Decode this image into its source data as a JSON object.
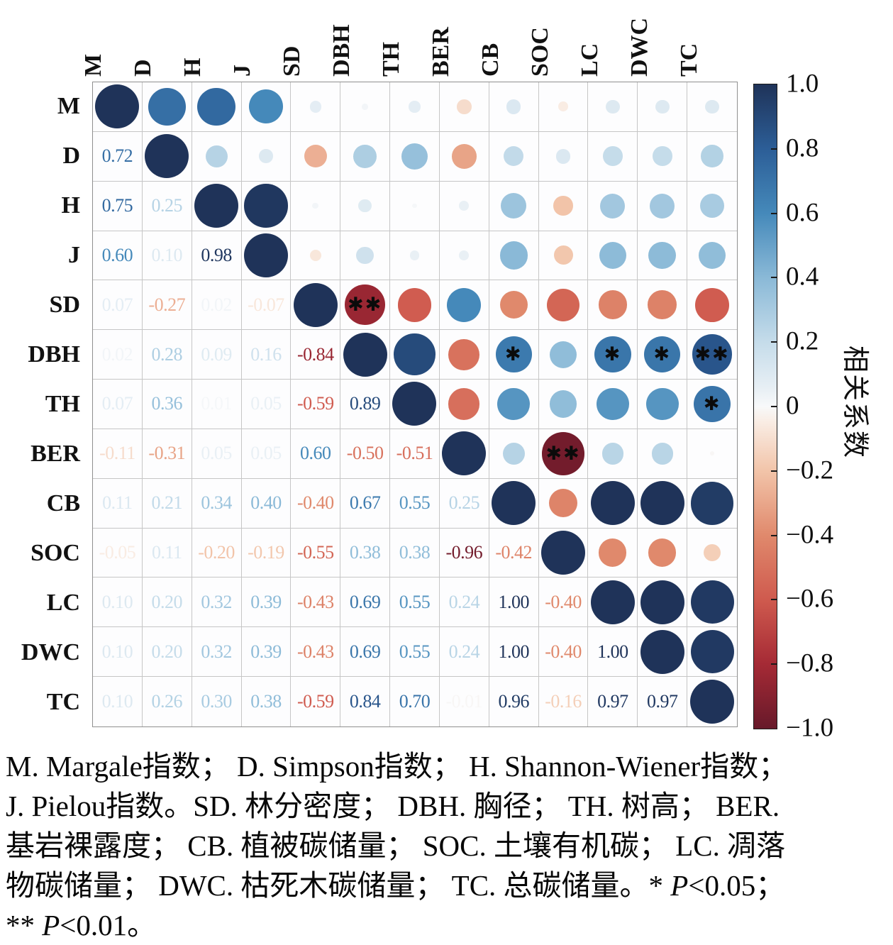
{
  "page": {
    "background": "#ffffff"
  },
  "chart_data": {
    "type": "heatmap",
    "style": "correlation-circle-matrix",
    "title": "",
    "variables": [
      "M",
      "D",
      "H",
      "J",
      "SD",
      "DBH",
      "TH",
      "BER",
      "CB",
      "SOC",
      "LC",
      "DWC",
      "TC"
    ],
    "matrix": [
      [
        1.0,
        0.72,
        0.75,
        0.6,
        0.07,
        0.02,
        0.07,
        -0.11,
        0.11,
        -0.05,
        0.1,
        0.1,
        0.1
      ],
      [
        0.72,
        1.0,
        0.25,
        0.1,
        -0.27,
        0.28,
        0.36,
        -0.31,
        0.21,
        0.11,
        0.2,
        0.2,
        0.26
      ],
      [
        0.75,
        0.25,
        1.0,
        0.98,
        0.02,
        0.09,
        0.01,
        0.05,
        0.34,
        -0.2,
        0.32,
        0.32,
        0.3
      ],
      [
        0.6,
        0.1,
        0.98,
        1.0,
        -0.07,
        0.16,
        0.05,
        0.05,
        0.4,
        -0.19,
        0.39,
        0.39,
        0.38
      ],
      [
        0.07,
        -0.27,
        0.02,
        -0.07,
        1.0,
        -0.84,
        -0.59,
        0.6,
        -0.4,
        -0.55,
        -0.43,
        -0.43,
        -0.59
      ],
      [
        0.02,
        0.28,
        0.09,
        0.16,
        -0.84,
        1.0,
        0.89,
        -0.5,
        0.67,
        0.38,
        0.69,
        0.69,
        0.84
      ],
      [
        0.07,
        0.36,
        0.01,
        0.05,
        -0.59,
        0.89,
        1.0,
        -0.51,
        0.55,
        0.38,
        0.55,
        0.55,
        0.7
      ],
      [
        -0.11,
        -0.31,
        0.05,
        0.05,
        0.6,
        -0.5,
        -0.51,
        1.0,
        0.25,
        -0.96,
        0.24,
        0.24,
        -0.01
      ],
      [
        0.11,
        0.21,
        0.34,
        0.4,
        -0.4,
        0.67,
        0.55,
        0.25,
        1.0,
        -0.42,
        1.0,
        1.0,
        0.96
      ],
      [
        -0.05,
        0.11,
        -0.2,
        -0.19,
        -0.55,
        0.38,
        0.38,
        -0.96,
        -0.42,
        1.0,
        -0.4,
        -0.4,
        -0.16
      ],
      [
        0.1,
        0.2,
        0.32,
        0.39,
        -0.43,
        0.69,
        0.55,
        0.24,
        1.0,
        -0.4,
        1.0,
        1.0,
        0.97
      ],
      [
        0.1,
        0.2,
        0.32,
        0.39,
        -0.43,
        0.69,
        0.55,
        0.24,
        1.0,
        -0.4,
        1.0,
        1.0,
        0.97
      ],
      [
        0.1,
        0.26,
        0.3,
        0.38,
        -0.59,
        0.84,
        0.7,
        -0.01,
        0.96,
        -0.16,
        0.97,
        0.97,
        1.0
      ]
    ],
    "significance": [
      {
        "pair": "SD-DBH",
        "stars": 2
      },
      {
        "pair": "DBH-CB",
        "stars": 1
      },
      {
        "pair": "DBH-LC",
        "stars": 1
      },
      {
        "pair": "DBH-DWC",
        "stars": 1
      },
      {
        "pair": "DBH-TC",
        "stars": 2
      },
      {
        "pair": "TH-TC",
        "stars": 1
      },
      {
        "pair": "BER-SOC",
        "stars": 2
      }
    ],
    "star_glyph": "✱",
    "colorbar": {
      "title": "相关系数",
      "tick_values": [
        1.0,
        0.8,
        0.6,
        0.4,
        0.2,
        0,
        -0.2,
        -0.4,
        -0.6,
        -0.8,
        -1.0
      ],
      "tick_labels": [
        "1.0",
        "0.8",
        "0.6",
        "0.4",
        "0.2",
        "0",
        "−0.2",
        "−0.4",
        "−0.6",
        "−0.8",
        "−1.0"
      ],
      "range": [
        -1,
        1
      ]
    },
    "colormap_stops": [
      [
        -1.0,
        "#67192a"
      ],
      [
        -0.8,
        "#a52a35"
      ],
      [
        -0.6,
        "#cf5a4e"
      ],
      [
        -0.4,
        "#e0896c"
      ],
      [
        -0.2,
        "#f2c4a9"
      ],
      [
        -0.05,
        "#f9ece3"
      ],
      [
        0.0,
        "#f8f9fa"
      ],
      [
        0.05,
        "#e9f0f5"
      ],
      [
        0.2,
        "#c5dcea"
      ],
      [
        0.4,
        "#8ab9d7"
      ],
      [
        0.6,
        "#4589ba"
      ],
      [
        0.8,
        "#2c5e97"
      ],
      [
        1.0,
        "#1f3359"
      ]
    ],
    "legend_position": "right",
    "grid": true
  },
  "caption": {
    "lines": [
      "M. Margale指数； D. Simpson指数； H. Shannon-Wiener指数；",
      "J. Pielou指数。SD. 林分密度； DBH. 胸径； TH. 树高； BER.",
      "基岩裸露度； CB. 植被碳储量； SOC. 土壤有机碳； LC. 凋落",
      "物碳储量； DWC. 枯死木碳储量； TC. 总碳储量。* P<0.05；",
      "** P<0.01。"
    ]
  }
}
